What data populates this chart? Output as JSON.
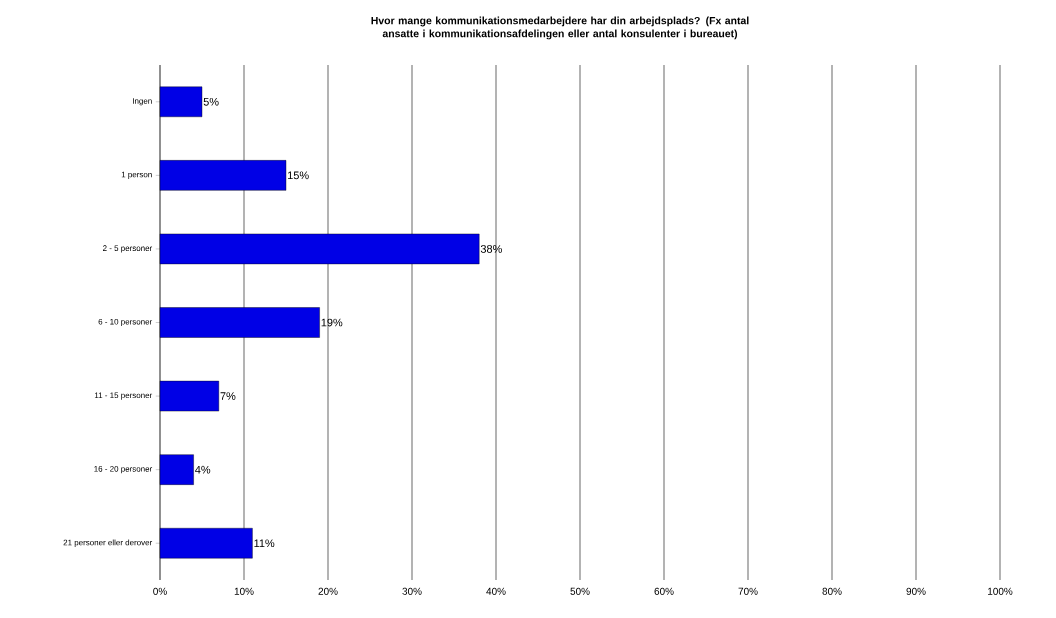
{
  "chart_data": {
    "type": "bar",
    "orientation": "horizontal",
    "title": "Hvor mange kommunikationsmedarbejdere har din arbejdsplads? (Fx antal ansatte i kommunikationsafdelingen eller antal konsulenter i bureauet)",
    "categories": [
      "Ingen",
      "1 person",
      "2 - 5 personer",
      "6 - 10 personer",
      "11 - 15 personer",
      "16 - 20 personer",
      "21 personer eller derover"
    ],
    "values": [
      5,
      15,
      38,
      19,
      7,
      4,
      11
    ],
    "value_labels": [
      "5%",
      "15%",
      "38%",
      "19%",
      "7%",
      "4%",
      "11%"
    ],
    "color": "#0000e6",
    "xlim": [
      0,
      100
    ],
    "xticks": [
      {
        "value": 0,
        "label": "0%"
      },
      {
        "value": 10,
        "label": "10%"
      },
      {
        "value": 20,
        "label": "20%"
      },
      {
        "value": 30,
        "label": "30%"
      },
      {
        "value": 40,
        "label": "40%"
      },
      {
        "value": 50,
        "label": "50%"
      },
      {
        "value": 60,
        "label": "60%"
      },
      {
        "value": 70,
        "label": "70%"
      },
      {
        "value": 80,
        "label": "80%"
      },
      {
        "value": 90,
        "label": "90%"
      },
      {
        "value": 100,
        "label": "100%"
      }
    ],
    "grid": "x"
  }
}
